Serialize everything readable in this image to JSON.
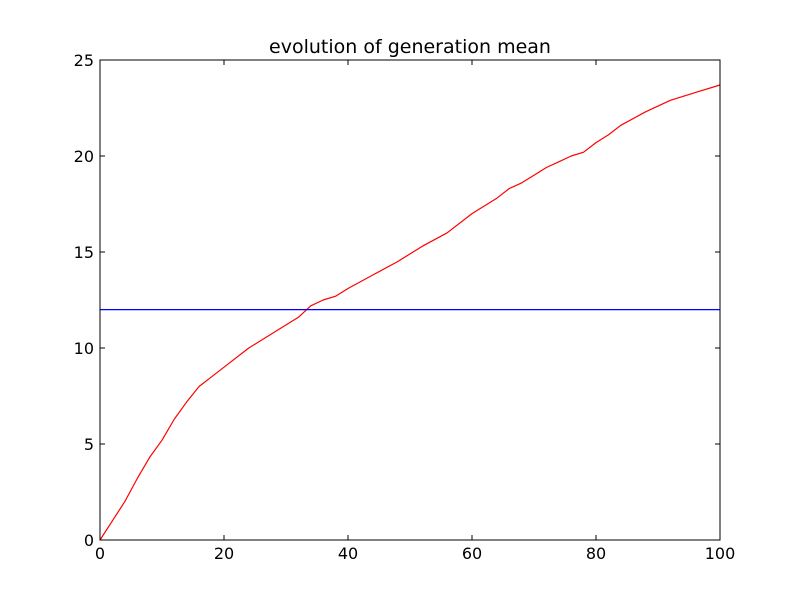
{
  "chart_data": {
    "type": "line",
    "title": "evolution of generation mean",
    "xlabel": "",
    "ylabel": "",
    "xlim": [
      0,
      100
    ],
    "ylim": [
      0,
      25
    ],
    "x_ticks": [
      0,
      20,
      40,
      60,
      80,
      100
    ],
    "y_ticks": [
      0,
      5,
      10,
      15,
      20,
      25
    ],
    "grid": false,
    "legend": "none",
    "series": [
      {
        "color": "#ff0000",
        "x": [
          0,
          2,
          4,
          5,
          6,
          8,
          10,
          12,
          14,
          16,
          18,
          20,
          24,
          28,
          32,
          34,
          36,
          38,
          40,
          44,
          48,
          52,
          56,
          60,
          64,
          66,
          68,
          70,
          72,
          74,
          76,
          78,
          80,
          82,
          84,
          88,
          92,
          96,
          100
        ],
        "y": [
          0,
          1.0,
          2.0,
          2.6,
          3.2,
          4.3,
          5.2,
          6.3,
          7.2,
          8.0,
          8.5,
          9.0,
          10.0,
          10.8,
          11.6,
          12.2,
          12.5,
          12.7,
          13.1,
          13.8,
          14.5,
          15.3,
          16.0,
          17.0,
          17.8,
          18.3,
          18.6,
          19.0,
          19.4,
          19.7,
          20.0,
          20.2,
          20.7,
          21.1,
          21.6,
          22.3,
          22.9,
          23.3,
          23.7
        ]
      },
      {
        "color": "#0000ff",
        "x": [
          0,
          100
        ],
        "y": [
          12,
          12
        ]
      }
    ]
  }
}
